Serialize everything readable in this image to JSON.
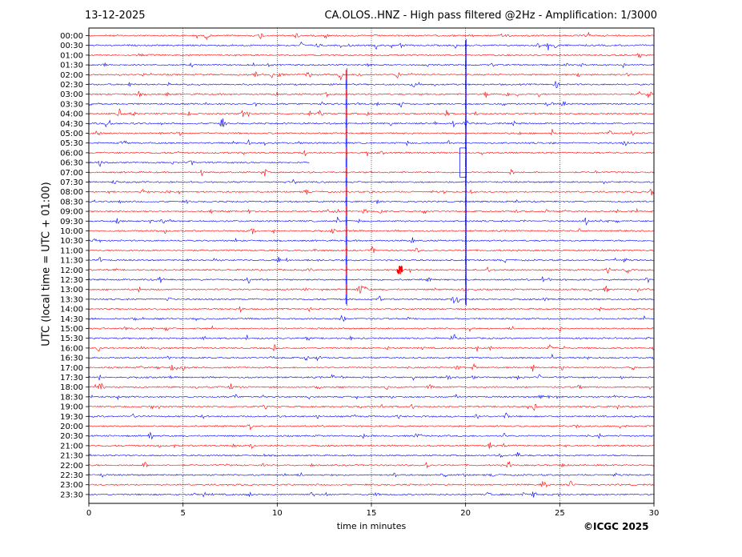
{
  "header": {
    "date": "13-12-2025",
    "title": "CA.OLOS..HNZ - High pass filtered @2Hz - Amplification: 1/3000"
  },
  "footer": {
    "copyright": "©ICGC 2025"
  },
  "chart_data": {
    "type": "line",
    "subtype": "helicorder",
    "title": "CA.OLOS..HNZ - High pass filtered @2Hz - Amplification: 1/3000",
    "xlabel": "time in minutes",
    "ylabel": "UTC (local time = UTC + 01:00)",
    "xlim": [
      0,
      30
    ],
    "x_ticks": [
      0,
      5,
      10,
      15,
      20,
      25,
      30
    ],
    "grid": "vertical dotted lines at 5-minute intervals",
    "trace_colors": [
      "#ff0000",
      "#0000ff"
    ],
    "y_tick_labels": [
      "00:00",
      "00:30",
      "01:00",
      "01:30",
      "02:00",
      "02:30",
      "03:00",
      "03:30",
      "04:00",
      "04:30",
      "05:00",
      "05:30",
      "06:00",
      "06:30",
      "07:00",
      "07:30",
      "08:00",
      "08:30",
      "09:00",
      "09:30",
      "10:00",
      "10:30",
      "11:00",
      "11:30",
      "12:00",
      "12:30",
      "13:00",
      "13:30",
      "14:00",
      "14:30",
      "15:00",
      "15:30",
      "16:00",
      "16:30",
      "17:00",
      "17:30",
      "18:00",
      "18:30",
      "19:00",
      "19:30",
      "20:00",
      "20:30",
      "21:00",
      "21:30",
      "22:00",
      "22:30",
      "23:00",
      "23:30"
    ],
    "events": [
      {
        "x": 13.65,
        "rows": [
          "02:00",
          "13:30"
        ],
        "amplitude": "large"
      },
      {
        "x": 20.0,
        "rows": [
          "00:30",
          "13:30"
        ],
        "amplitude": "large"
      },
      {
        "x": 19.7,
        "rows": [
          "06:00",
          "07:00"
        ],
        "amplitude": "step"
      },
      {
        "x": 16.5,
        "rows": [
          "12:00"
        ],
        "amplitude": "medium"
      }
    ],
    "gaps": [
      {
        "row": "06:30",
        "from": 11.7,
        "to": 30
      }
    ]
  }
}
